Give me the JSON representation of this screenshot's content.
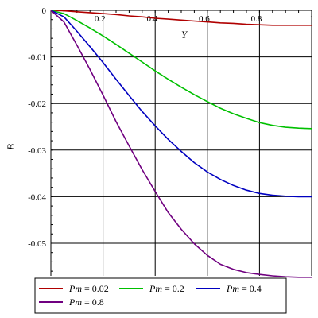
{
  "chart_data": {
    "type": "line",
    "xlabel": "Y",
    "ylabel": "B",
    "xlim": [
      0,
      1
    ],
    "ylim": [
      -0.057,
      0
    ],
    "grid": true,
    "legend_placement": "bottom",
    "x_ticks": [
      "0.2",
      "0.4",
      "0.6",
      "0.8",
      "1"
    ],
    "y_ticks": [
      "0",
      "-0.01",
      "-0.02",
      "-0.03",
      "-0.04",
      "-0.05"
    ],
    "x_tick_values": [
      0.2,
      0.4,
      0.6,
      0.8,
      1
    ],
    "y_tick_values": [
      0,
      -0.01,
      -0.02,
      -0.03,
      -0.04,
      -0.05
    ],
    "x": [
      0,
      0.05,
      0.1,
      0.15,
      0.2,
      0.25,
      0.3,
      0.35,
      0.4,
      0.45,
      0.5,
      0.55,
      0.6,
      0.65,
      0.7,
      0.75,
      0.8,
      0.85,
      0.9,
      0.95,
      1
    ],
    "series": [
      {
        "name": "Pm = 0.02",
        "color": "#b00000",
        "values": [
          0,
          -0.0001,
          -0.0003,
          -0.0005,
          -0.0007,
          -0.0009,
          -0.0012,
          -0.0014,
          -0.0017,
          -0.0019,
          -0.0021,
          -0.0023,
          -0.0025,
          -0.0027,
          -0.0028,
          -0.003,
          -0.0031,
          -0.0032,
          -0.0032,
          -0.0032,
          -0.0032
        ]
      },
      {
        "name": "Pm = 0.2",
        "color": "#00c000",
        "values": [
          0,
          -0.0007,
          -0.0022,
          -0.0038,
          -0.0055,
          -0.0073,
          -0.0092,
          -0.0111,
          -0.013,
          -0.0148,
          -0.0165,
          -0.0181,
          -0.0196,
          -0.021,
          -0.0222,
          -0.0232,
          -0.0241,
          -0.0247,
          -0.0251,
          -0.0253,
          -0.0254
        ]
      },
      {
        "name": "Pm = 0.4",
        "color": "#0000c0",
        "values": [
          0,
          -0.0014,
          -0.0045,
          -0.0078,
          -0.0112,
          -0.0148,
          -0.0183,
          -0.0217,
          -0.0248,
          -0.0277,
          -0.0303,
          -0.0327,
          -0.0347,
          -0.0363,
          -0.0376,
          -0.0386,
          -0.0393,
          -0.0397,
          -0.0399,
          -0.04,
          -0.04
        ]
      },
      {
        "name": "Pm = 0.8",
        "color": "#700080",
        "values": [
          0,
          -0.0025,
          -0.0075,
          -0.0127,
          -0.0182,
          -0.0239,
          -0.0291,
          -0.0342,
          -0.0389,
          -0.0434,
          -0.047,
          -0.0501,
          -0.0526,
          -0.0545,
          -0.0556,
          -0.0563,
          -0.0567,
          -0.057,
          -0.0572,
          -0.0573,
          -0.0573
        ]
      }
    ]
  },
  "legend": {
    "items": [
      {
        "var": "Pm",
        "rest": " = 0.02"
      },
      {
        "var": "Pm",
        "rest": " = 0.2"
      },
      {
        "var": "Pm",
        "rest": " = 0.4"
      },
      {
        "var": "Pm",
        "rest": " = 0.8"
      }
    ]
  }
}
